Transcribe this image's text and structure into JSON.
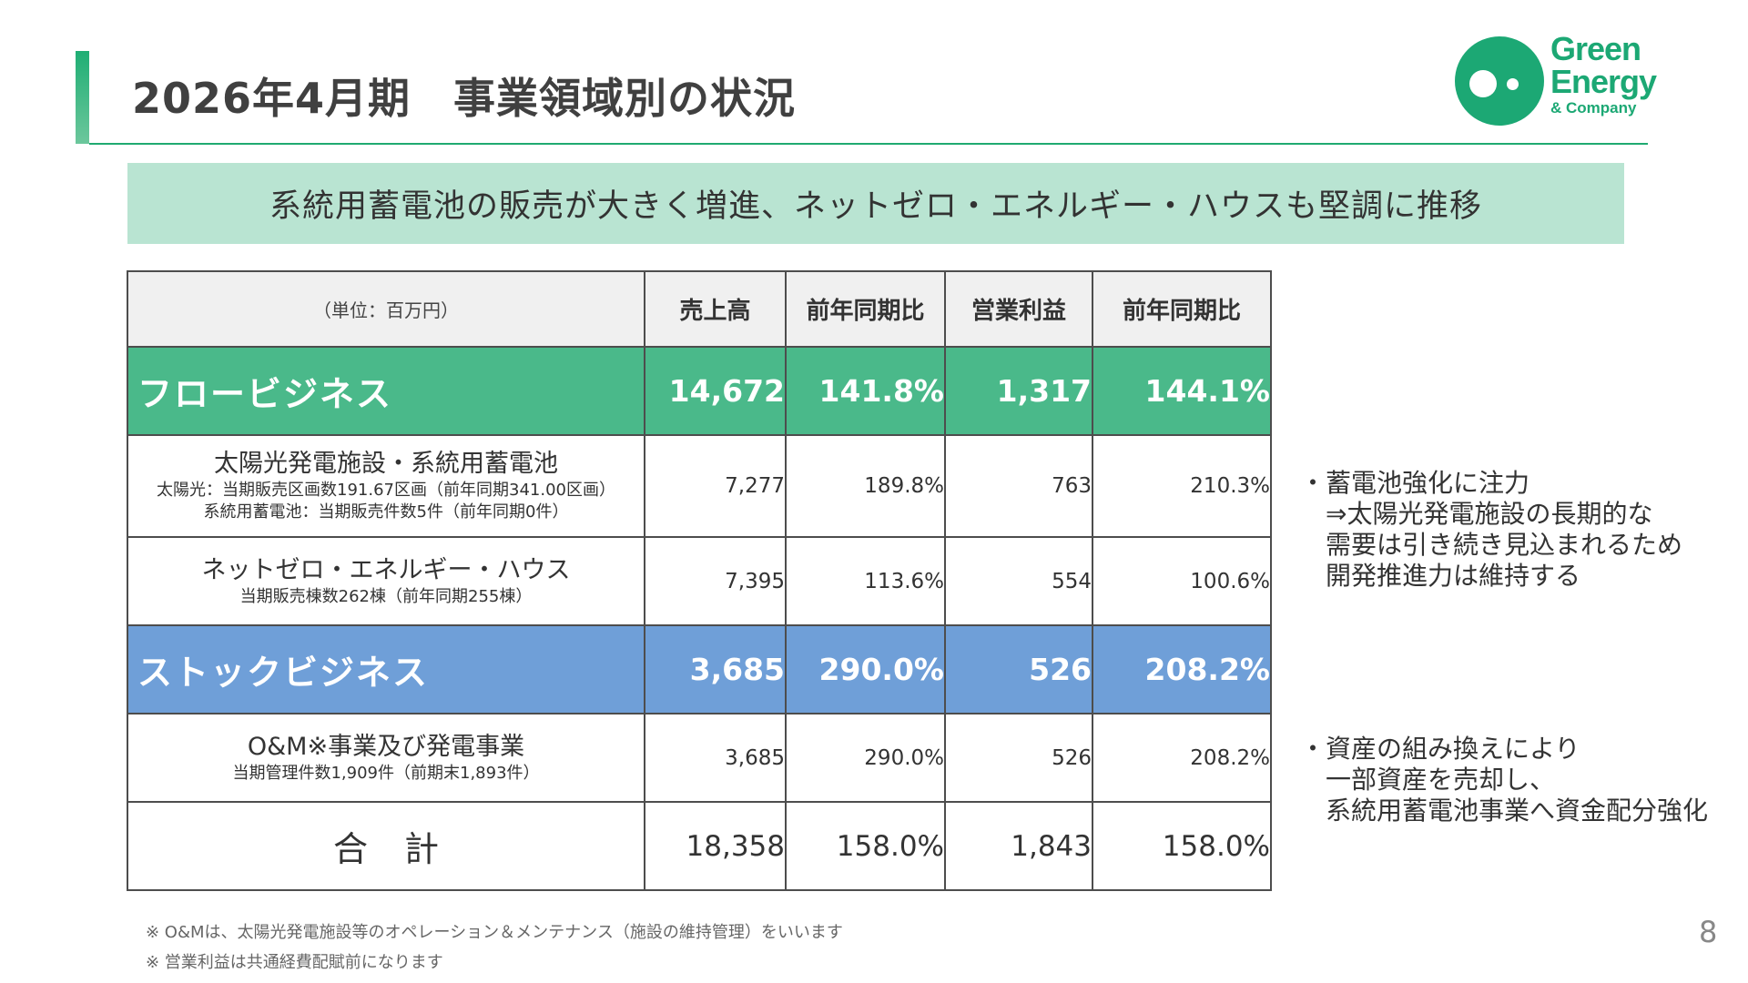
{
  "header": {
    "title": "2026年4月期　事業領域別の状況"
  },
  "logo": {
    "line1": "Green",
    "line2": "Energy",
    "line3": "& Company",
    "color": "#1ca874"
  },
  "subtitle": "系統用蓄電池の販売が大きく増進、ネットゼロ・エネルギー・ハウスも堅調に推移",
  "table": {
    "unit": "（単位：百万円）",
    "headers": [
      "売上高",
      "前年同期比",
      "営業利益",
      "前年同期比"
    ],
    "flow": {
      "name": "フロービジネス",
      "values": [
        "14,672",
        "141.8%",
        "1,317",
        "144.1%"
      ],
      "color": "#4ab98a"
    },
    "solar": {
      "name": "太陽光発電施設・系統用蓄電池",
      "note1": "太陽光：当期販売区画数191.67区画（前年同期341.00区画）",
      "note2": "系統用蓄電池：当期販売件数5件（前年同期0件）",
      "values": [
        "7,277",
        "189.8%",
        "763",
        "210.3%"
      ]
    },
    "zeh": {
      "name": "ネットゼロ・エネルギー・ハウス",
      "note1": "当期販売棟数262棟（前年同期255棟）",
      "values": [
        "7,395",
        "113.6%",
        "554",
        "100.6%"
      ]
    },
    "stock": {
      "name": "ストックビジネス",
      "values": [
        "3,685",
        "290.0%",
        "526",
        "208.2%"
      ],
      "color": "#6f9fd8"
    },
    "om": {
      "name": "O&M※事業及び発電事業",
      "note1": "当期管理件数1,909件（前期末1,893件）",
      "values": [
        "3,685",
        "290.0%",
        "526",
        "208.2%"
      ]
    },
    "total": {
      "name": "合計",
      "values": [
        "18,358",
        "158.0%",
        "1,843",
        "158.0%"
      ]
    }
  },
  "side_notes": {
    "note1": [
      "・蓄電池強化に注力",
      "⇒太陽光発電施設の長期的な",
      "需要は引き続き見込まれるため",
      "開発推進力は維持する"
    ],
    "note2": [
      "・資産の組み換えにより",
      "一部資産を売却し、",
      "系統用蓄電池事業へ資金配分強化"
    ]
  },
  "footnotes": [
    "※ O&Mは、太陽光発電施設等のオペレーション＆メンテナンス（施設の維持管理）をいいます",
    "※ 営業利益は共通経費配賦前になります"
  ],
  "page_number": "8"
}
